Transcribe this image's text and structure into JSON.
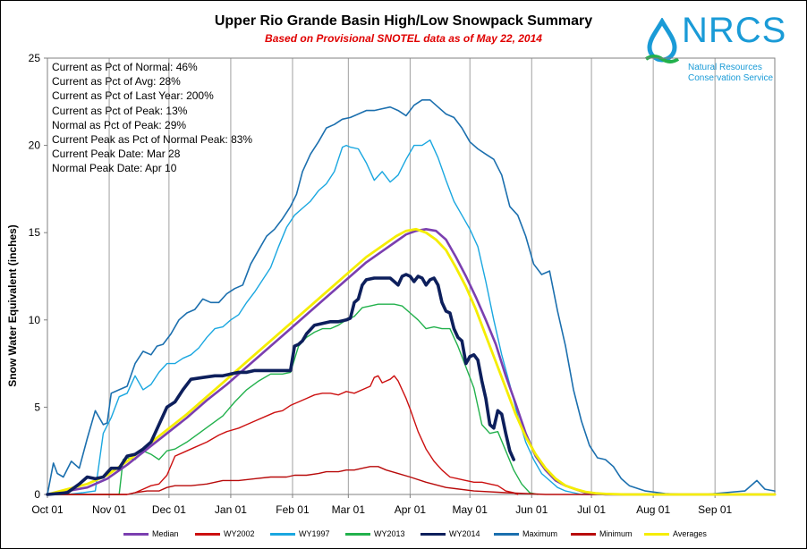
{
  "chart_data": {
    "type": "line",
    "title": "Upper Rio Grande Basin High/Low Snowpack Summary",
    "subtitle": "Based on Provisional SNOTEL data as of May 22, 2014",
    "ylabel": "Snow Water Equivalent (inches)",
    "xlabel": "",
    "ylim": [
      0,
      25
    ],
    "xlim": [
      0,
      365
    ],
    "yticks": [
      0,
      5,
      10,
      15,
      20,
      25
    ],
    "xticks": [
      {
        "label": "Oct 01",
        "day": 0
      },
      {
        "label": "Nov 01",
        "day": 31
      },
      {
        "label": "Dec 01",
        "day": 61
      },
      {
        "label": "Jan 01",
        "day": 92
      },
      {
        "label": "Feb 01",
        "day": 123
      },
      {
        "label": "Mar 01",
        "day": 151
      },
      {
        "label": "Apr 01",
        "day": 182
      },
      {
        "label": "May 01",
        "day": 212
      },
      {
        "label": "Jun 01",
        "day": 243
      },
      {
        "label": "Jul 01",
        "day": 273
      },
      {
        "label": "Aug 01",
        "day": 304
      },
      {
        "label": "Sep 01",
        "day": 335
      }
    ],
    "grid": "vertical",
    "legend_position": "bottom",
    "stats": [
      "Current  as Pct of Normal: 46%",
      "Current  as Pct of Avg: 28%",
      "Current  as Pct of Last Year: 200%",
      "Current  as Pct of Peak: 13%",
      "Normal as Pct of Peak: 29%",
      "Current  Peak as Pct of Normal  Peak: 83%",
      "Current  Peak Date:  Mar 28",
      "Normal Peak Date:  Apr 10"
    ],
    "series": [
      {
        "name": "Maximum",
        "color": "#1b6fae",
        "width": 1.6,
        "x": [
          0,
          3,
          5,
          8,
          12,
          16,
          20,
          24,
          28,
          30,
          32,
          36,
          40,
          44,
          48,
          52,
          55,
          58,
          62,
          66,
          70,
          74,
          78,
          82,
          86,
          90,
          94,
          98,
          102,
          106,
          110,
          114,
          118,
          122,
          125,
          128,
          132,
          136,
          140,
          144,
          148,
          152,
          156,
          160,
          164,
          168,
          172,
          176,
          180,
          184,
          188,
          192,
          196,
          200,
          204,
          208,
          212,
          216,
          220,
          224,
          228,
          232,
          236,
          240,
          244,
          248,
          252,
          256,
          260,
          264,
          268,
          272,
          276,
          280,
          284,
          288,
          292,
          300,
          310,
          320,
          330,
          340,
          350,
          356,
          360,
          365
        ],
        "y": [
          0,
          1.8,
          1.2,
          1.0,
          1.9,
          1.5,
          3.2,
          4.8,
          4.0,
          4.1,
          5.8,
          6.0,
          6.2,
          7.5,
          8.2,
          8.0,
          8.5,
          8.6,
          9.2,
          10.0,
          10.4,
          10.6,
          11.2,
          11.0,
          11.0,
          11.5,
          11.8,
          12.0,
          13.2,
          14.0,
          14.8,
          15.2,
          15.8,
          16.5,
          17.2,
          18.5,
          19.5,
          20.2,
          21.0,
          21.2,
          21.5,
          21.6,
          21.8,
          22.0,
          22.0,
          22.1,
          22.2,
          22.0,
          21.7,
          22.3,
          22.6,
          22.6,
          22.2,
          21.8,
          21.6,
          21.0,
          20.2,
          19.8,
          19.5,
          19.2,
          18.3,
          16.5,
          16.0,
          14.8,
          13.2,
          12.6,
          12.8,
          10.5,
          8.5,
          6.0,
          4.2,
          2.8,
          2.1,
          2.0,
          1.6,
          0.9,
          0.5,
          0.2,
          0.05,
          0,
          0,
          0.1,
          0.2,
          0.8,
          0.3,
          0.2
        ]
      },
      {
        "name": "WY1997",
        "color": "#1aa7e0",
        "width": 1.4,
        "x": [
          0,
          10,
          18,
          24,
          28,
          32,
          36,
          40,
          44,
          48,
          52,
          56,
          60,
          64,
          68,
          72,
          76,
          80,
          84,
          88,
          92,
          96,
          100,
          104,
          108,
          112,
          116,
          120,
          124,
          128,
          132,
          136,
          140,
          144,
          146,
          148,
          150,
          152,
          156,
          160,
          164,
          168,
          172,
          176,
          180,
          184,
          188,
          192,
          196,
          200,
          204,
          208,
          212,
          216,
          220,
          224,
          228,
          232,
          236,
          240,
          244,
          248,
          252,
          256,
          260,
          264,
          268,
          272,
          276,
          280,
          284
        ],
        "y": [
          0,
          0,
          0.1,
          0.2,
          3.5,
          4.4,
          5.6,
          5.8,
          6.8,
          6.0,
          6.3,
          7.0,
          7.5,
          7.5,
          7.8,
          8.0,
          8.4,
          9.0,
          9.5,
          9.6,
          10.0,
          10.3,
          11.0,
          11.6,
          12.3,
          13.0,
          14.2,
          15.3,
          16.0,
          16.4,
          16.8,
          17.4,
          17.8,
          18.5,
          19.2,
          19.9,
          20.0,
          19.9,
          19.8,
          19.0,
          18.0,
          18.5,
          17.9,
          18.3,
          19.2,
          20.0,
          20.0,
          20.3,
          19.3,
          18.0,
          16.8,
          16.0,
          15.2,
          14.2,
          12.2,
          10.0,
          8.0,
          6.3,
          4.5,
          3.0,
          2.0,
          1.2,
          0.8,
          0.4,
          0.2,
          0.1,
          0,
          0,
          0,
          0,
          0
        ]
      },
      {
        "name": "WY2013",
        "color": "#22b14c",
        "width": 1.4,
        "x": [
          0,
          36,
          38,
          40,
          44,
          48,
          52,
          56,
          60,
          64,
          70,
          76,
          82,
          88,
          94,
          100,
          106,
          112,
          118,
          122,
          126,
          130,
          134,
          138,
          142,
          146,
          150,
          154,
          158,
          162,
          166,
          170,
          174,
          178,
          182,
          186,
          190,
          194,
          198,
          202,
          206,
          210,
          214,
          218,
          222,
          226,
          230,
          234,
          238,
          242,
          246
        ],
        "y": [
          0,
          0,
          2.0,
          2.1,
          2.0,
          2.5,
          2.3,
          2.0,
          2.5,
          2.6,
          3.0,
          3.5,
          4.0,
          4.5,
          5.3,
          6.0,
          6.5,
          6.9,
          6.9,
          7.0,
          8.5,
          9.0,
          9.3,
          9.5,
          9.5,
          9.7,
          10.0,
          10.2,
          10.7,
          10.8,
          10.9,
          10.9,
          10.9,
          10.8,
          10.4,
          10.0,
          9.5,
          9.6,
          9.5,
          9.5,
          8.5,
          7.3,
          6.1,
          4.0,
          3.5,
          3.6,
          2.5,
          1.4,
          0.6,
          0.1,
          0
        ]
      },
      {
        "name": "WY2002",
        "color": "#cc1010",
        "width": 1.4,
        "x": [
          0,
          40,
          44,
          48,
          52,
          56,
          60,
          64,
          68,
          72,
          80,
          86,
          90,
          96,
          100,
          104,
          110,
          114,
          118,
          122,
          126,
          130,
          134,
          138,
          142,
          146,
          150,
          154,
          158,
          162,
          164,
          166,
          168,
          170,
          172,
          174,
          176,
          178,
          180,
          182,
          186,
          190,
          194,
          198,
          202,
          206,
          210,
          214,
          218,
          222,
          226,
          230,
          234,
          236
        ],
        "y": [
          0,
          0,
          0.1,
          0.3,
          0.5,
          0.6,
          1.1,
          2.2,
          2.4,
          2.6,
          3.0,
          3.4,
          3.6,
          3.8,
          4.0,
          4.2,
          4.5,
          4.7,
          4.8,
          5.1,
          5.3,
          5.5,
          5.7,
          5.8,
          5.8,
          5.7,
          5.9,
          5.8,
          6.0,
          6.2,
          6.7,
          6.8,
          6.4,
          6.5,
          6.6,
          6.8,
          6.5,
          6.0,
          5.5,
          4.9,
          3.6,
          2.6,
          1.9,
          1.4,
          1.0,
          0.9,
          0.8,
          0.7,
          0.7,
          0.6,
          0.5,
          0.2,
          0.1,
          0
        ]
      },
      {
        "name": "Minimum",
        "color": "#b80a0a",
        "width": 1.4,
        "x": [
          0,
          40,
          44,
          50,
          56,
          60,
          64,
          68,
          72,
          80,
          88,
          96,
          104,
          112,
          120,
          124,
          130,
          136,
          140,
          146,
          150,
          154,
          158,
          162,
          166,
          170,
          176,
          182,
          190,
          200,
          214,
          230,
          240,
          250,
          260,
          270,
          280,
          300,
          330,
          365
        ],
        "y": [
          0,
          0,
          0.1,
          0.2,
          0.2,
          0.4,
          0.5,
          0.5,
          0.5,
          0.6,
          0.8,
          0.8,
          0.9,
          1.0,
          1.0,
          1.1,
          1.1,
          1.2,
          1.3,
          1.3,
          1.4,
          1.4,
          1.5,
          1.6,
          1.6,
          1.4,
          1.2,
          1.0,
          0.7,
          0.4,
          0.2,
          0.1,
          0.05,
          0,
          0,
          0,
          0,
          0,
          0,
          0
        ]
      },
      {
        "name": "Median",
        "color": "#7b3fb0",
        "width": 2.6,
        "x": [
          0,
          10,
          20,
          30,
          40,
          50,
          60,
          70,
          80,
          90,
          100,
          110,
          120,
          130,
          140,
          150,
          160,
          170,
          175,
          180,
          185,
          190,
          195,
          200,
          205,
          210,
          215,
          220,
          225,
          230,
          235,
          240,
          245,
          250,
          255,
          260,
          265,
          270,
          275,
          280,
          285,
          290,
          300,
          365
        ],
        "y": [
          0,
          0.2,
          0.4,
          0.9,
          1.7,
          2.6,
          3.5,
          4.4,
          5.4,
          6.3,
          7.3,
          8.3,
          9.3,
          10.3,
          11.3,
          12.3,
          13.3,
          14.1,
          14.5,
          14.9,
          15.1,
          15.2,
          15.1,
          14.6,
          13.6,
          12.5,
          11.3,
          10.0,
          8.6,
          6.8,
          5.2,
          3.5,
          2.2,
          1.4,
          0.8,
          0.5,
          0.3,
          0.1,
          0.05,
          0,
          0,
          0,
          0,
          0
        ]
      },
      {
        "name": "Averages",
        "color": "#f5ed00",
        "width": 2.8,
        "x": [
          0,
          10,
          20,
          30,
          40,
          50,
          60,
          70,
          80,
          90,
          100,
          110,
          120,
          130,
          140,
          150,
          160,
          170,
          175,
          180,
          185,
          190,
          195,
          200,
          205,
          210,
          215,
          220,
          225,
          230,
          235,
          240,
          245,
          250,
          255,
          260,
          265,
          270,
          275,
          280,
          290,
          300,
          365
        ],
        "y": [
          0,
          0.3,
          0.6,
          1.1,
          1.9,
          2.8,
          3.7,
          4.6,
          5.6,
          6.6,
          7.6,
          8.6,
          9.6,
          10.6,
          11.6,
          12.6,
          13.6,
          14.4,
          14.8,
          15.1,
          15.2,
          15.0,
          14.6,
          14.0,
          13.0,
          11.9,
          10.6,
          9.1,
          7.6,
          6.1,
          4.6,
          3.3,
          2.3,
          1.5,
          0.9,
          0.5,
          0.3,
          0.15,
          0.07,
          0.03,
          0,
          0,
          0
        ]
      },
      {
        "name": "WY2014",
        "color": "#0d1f5c",
        "width": 3.6,
        "x": [
          0,
          10,
          16,
          20,
          24,
          28,
          32,
          36,
          40,
          44,
          48,
          52,
          56,
          60,
          64,
          68,
          72,
          78,
          84,
          88,
          92,
          96,
          100,
          104,
          108,
          112,
          116,
          120,
          122,
          124,
          126,
          128,
          130,
          134,
          138,
          142,
          146,
          150,
          152,
          154,
          156,
          158,
          160,
          164,
          168,
          172,
          174,
          176,
          178,
          180,
          182,
          184,
          186,
          188,
          190,
          192,
          194,
          196,
          198,
          200,
          202,
          204,
          206,
          208,
          210,
          212,
          214,
          216,
          218,
          220,
          222,
          224,
          226,
          228,
          230,
          232,
          234
        ],
        "y": [
          0,
          0.1,
          0.6,
          1.0,
          0.9,
          1.0,
          1.5,
          1.5,
          2.2,
          2.3,
          2.6,
          3.0,
          4.0,
          5.0,
          5.3,
          6.0,
          6.6,
          6.7,
          6.8,
          6.8,
          6.9,
          7.0,
          7.0,
          7.1,
          7.1,
          7.1,
          7.1,
          7.1,
          7.1,
          8.5,
          8.6,
          8.8,
          9.2,
          9.7,
          9.8,
          9.9,
          9.9,
          10.0,
          10.1,
          11.0,
          11.2,
          12.0,
          12.3,
          12.4,
          12.4,
          12.4,
          12.2,
          12.0,
          12.5,
          12.6,
          12.5,
          12.2,
          12.5,
          12.4,
          12.0,
          12.3,
          12.4,
          12.0,
          11.0,
          10.5,
          10.4,
          9.5,
          9.0,
          8.8,
          7.5,
          7.9,
          8.0,
          7.7,
          6.5,
          5.5,
          4.0,
          3.8,
          4.8,
          4.6,
          3.5,
          2.5,
          2.0
        ]
      }
    ]
  },
  "logo": {
    "text": "NRCS",
    "line1": "Natural Resources",
    "line2": "Conservation Service"
  },
  "legend": [
    "Median",
    "WY2002",
    "WY1997",
    "WY2013",
    "WY2014",
    "Maximum",
    "Minimum",
    "Averages"
  ]
}
